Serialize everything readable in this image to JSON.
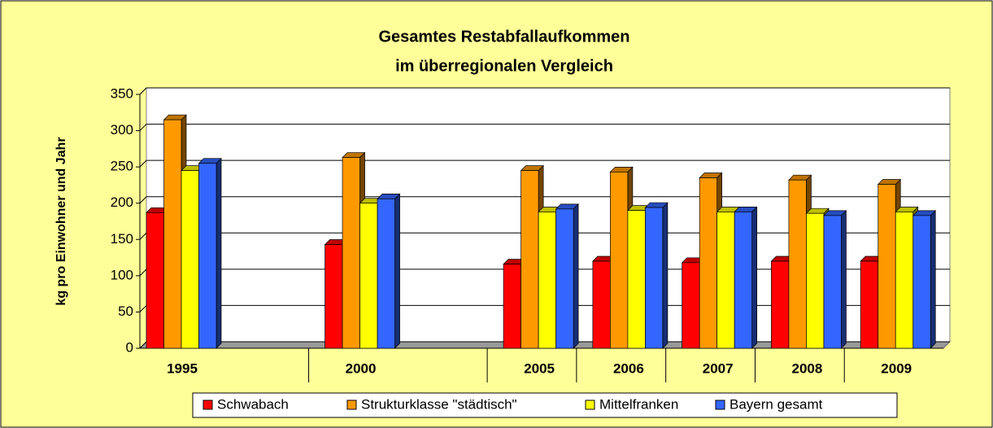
{
  "chart_data": {
    "type": "bar3d",
    "title": [
      "Gesamtes Restabfallaufkommen",
      "im überregionalen Vergleich"
    ],
    "y_label": "kg pro Einwohner und Jahr",
    "categories": [
      "1995",
      null,
      "2000",
      null,
      "2005",
      "2006",
      "2007",
      "2008",
      "2009"
    ],
    "series": [
      {
        "name": "Schwabach",
        "color": "#ff0000",
        "values": [
          187,
          null,
          143,
          null,
          116,
          120,
          118,
          120,
          120
        ]
      },
      {
        "name": "Strukturklasse \"städtisch\"",
        "color": "#ff9900",
        "values": [
          315,
          null,
          263,
          null,
          245,
          243,
          235,
          232,
          226
        ]
      },
      {
        "name": "Mittelfranken",
        "color": "#ffff00",
        "values": [
          245,
          null,
          200,
          null,
          188,
          190,
          188,
          186,
          188
        ]
      },
      {
        "name": "Bayern gesamt",
        "color": "#3366ff",
        "values": [
          255,
          null,
          206,
          null,
          192,
          194,
          188,
          183,
          183
        ]
      }
    ],
    "ylim": [
      0,
      350
    ],
    "yticks": [
      0,
      50,
      100,
      150,
      200,
      250,
      300,
      350
    ],
    "grid": true,
    "legend": "bottom"
  }
}
